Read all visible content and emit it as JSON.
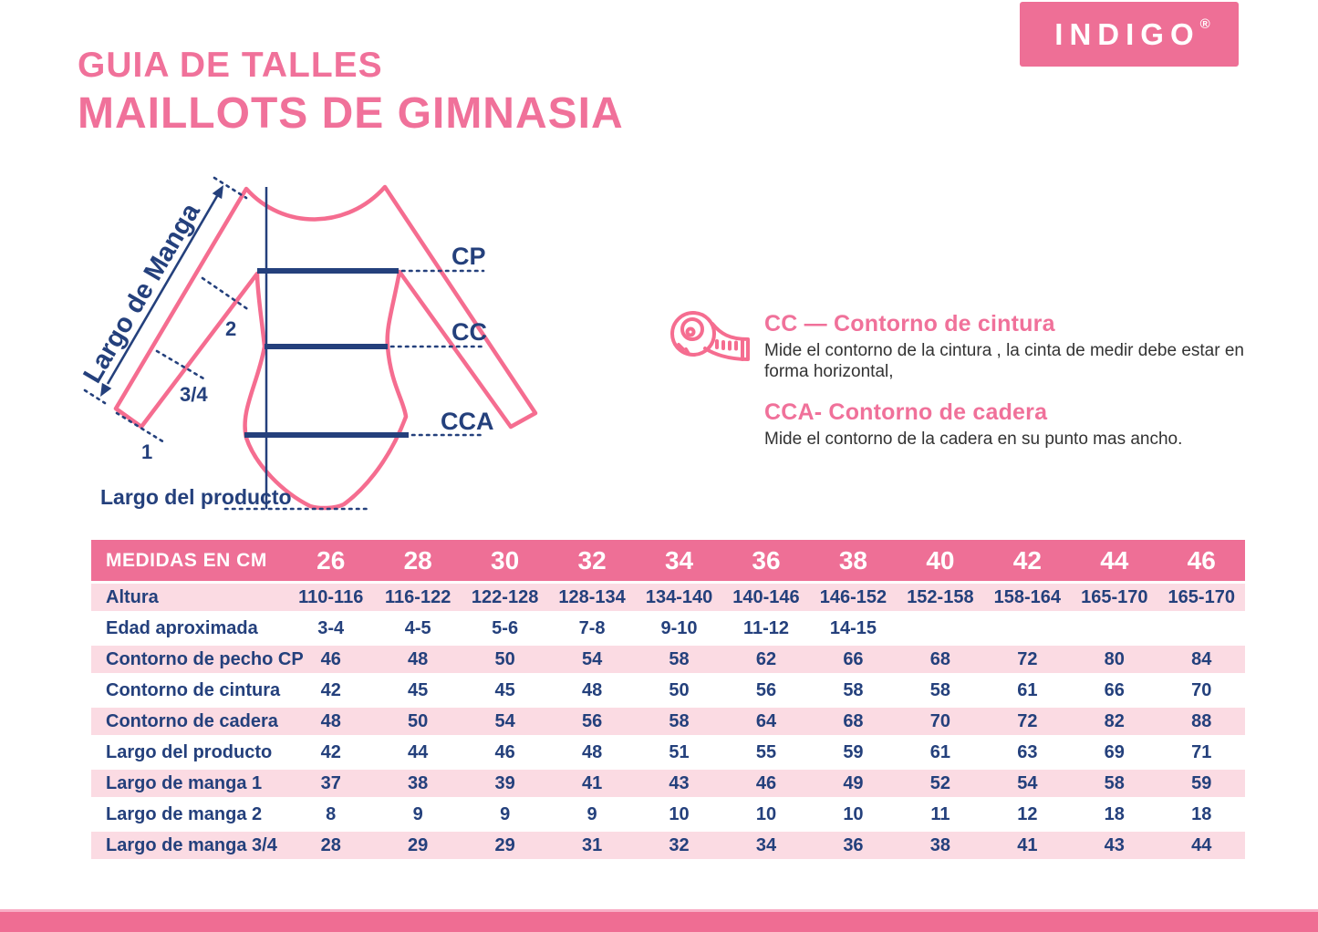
{
  "header": {
    "title_line1": "GUIA DE TALLES",
    "title_line2": "MAILLOTS DE GIMNASIA",
    "logo_text": "INDIGO",
    "logo_reg": "®"
  },
  "diagram": {
    "sleeve_label": "Largo de Manga",
    "product_length_label": "Largo del producto",
    "marker_cp": "CP",
    "marker_cc": "CC",
    "marker_cca": "CCA",
    "tick_2": "2",
    "tick_34": "3/4",
    "tick_1": "1"
  },
  "info": {
    "tape_icon": "measuring-tape-icon",
    "cc_heading": "CC — Contorno de cintura",
    "cc_body": "Mide el contorno de la cintura , la cinta de medir debe estar en forma horizontal,",
    "cca_heading": "CCA- Contorno de cadera",
    "cca_body": "Mide el contorno de la cadera en su punto mas ancho."
  },
  "size_table": {
    "header_label": "MEDIDAS EN CM",
    "sizes": [
      "26",
      "28",
      "30",
      "32",
      "34",
      "36",
      "38",
      "40",
      "42",
      "44",
      "46"
    ],
    "rows": [
      {
        "label": "Altura",
        "values": [
          "110-116",
          "116-122",
          "122-128",
          "128-134",
          "134-140",
          "140-146",
          "146-152",
          "152-158",
          "158-164",
          "165-170",
          "165-170"
        ]
      },
      {
        "label": "Edad aproximada",
        "values": [
          "3-4",
          "4-5",
          "5-6",
          "7-8",
          "9-10",
          "11-12",
          "14-15",
          "",
          "",
          "",
          ""
        ]
      },
      {
        "label": "Contorno de pecho CP",
        "values": [
          "46",
          "48",
          "50",
          "54",
          "58",
          "62",
          "66",
          "68",
          "72",
          "80",
          "84"
        ]
      },
      {
        "label": "Contorno de cintura",
        "values": [
          "42",
          "45",
          "45",
          "48",
          "50",
          "56",
          "58",
          "58",
          "61",
          "66",
          "70"
        ]
      },
      {
        "label": "Contorno de cadera",
        "values": [
          "48",
          "50",
          "54",
          "56",
          "58",
          "64",
          "68",
          "70",
          "72",
          "82",
          "88"
        ]
      },
      {
        "label": "Largo del producto",
        "values": [
          "42",
          "44",
          "46",
          "48",
          "51",
          "55",
          "59",
          "61",
          "63",
          "69",
          "71"
        ]
      },
      {
        "label": "Largo de manga 1",
        "values": [
          "37",
          "38",
          "39",
          "41",
          "43",
          "46",
          "49",
          "52",
          "54",
          "58",
          "59"
        ]
      },
      {
        "label": "Largo de manga 2",
        "values": [
          "8",
          "9",
          "9",
          "9",
          "10",
          "10",
          "10",
          "11",
          "12",
          "18",
          "18"
        ]
      },
      {
        "label": "Largo de manga 3/4",
        "values": [
          "28",
          "29",
          "29",
          "31",
          "32",
          "34",
          "36",
          "38",
          "41",
          "43",
          "44"
        ]
      }
    ]
  },
  "colors": {
    "brand_pink": "#ee6f96",
    "title_pink": "#f0719a",
    "row_pink": "#fbdbe3",
    "navy": "#24407c",
    "garment_outline": "#f56d90",
    "body_text": "#333333"
  }
}
